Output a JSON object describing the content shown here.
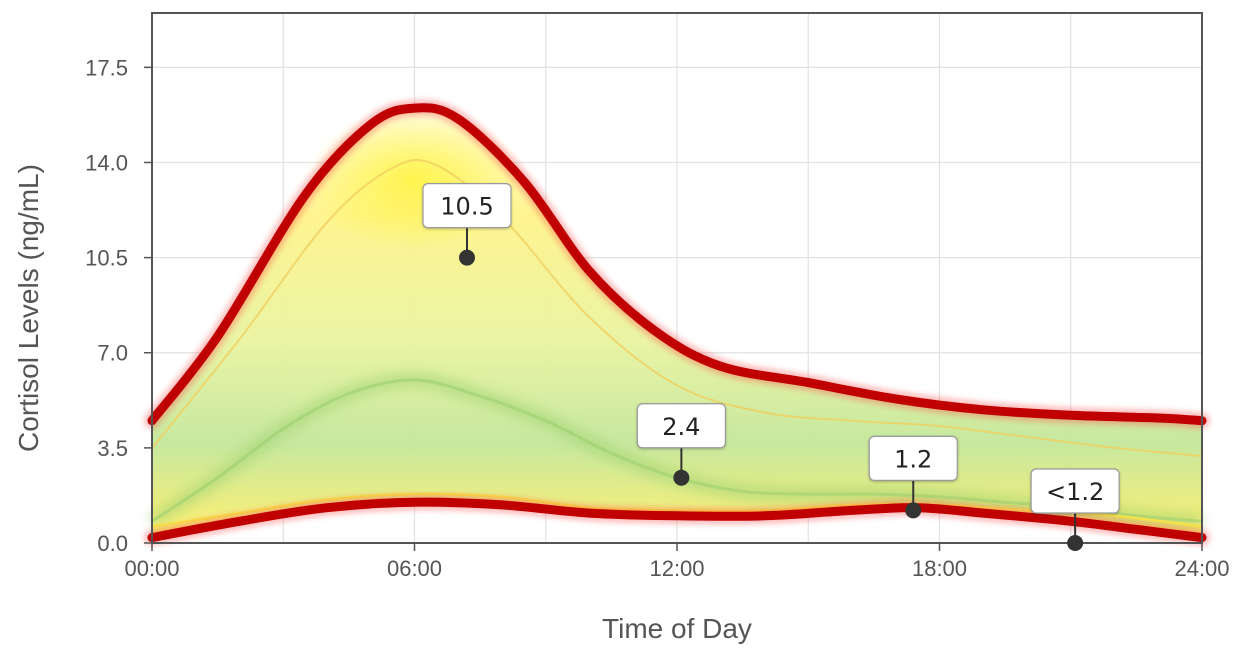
{
  "chart_data": {
    "type": "line",
    "xlabel": "Time of Day",
    "ylabel": "Cortisol Levels (ng/mL)",
    "x_ticks": [
      "00:00",
      "06:00",
      "12:00",
      "18:00",
      "24:00"
    ],
    "y_ticks": [
      "0.0",
      "3.5",
      "7.0",
      "10.5",
      "14.0",
      "17.5"
    ],
    "xlim": [
      0,
      24
    ],
    "ylim": [
      0,
      19.5
    ],
    "grid": true,
    "series": [
      {
        "role": "upper-bound",
        "color": "#c00000",
        "x": [
          0,
          1.5,
          3.5,
          5,
          6,
          7,
          8.5,
          10,
          11.5,
          13,
          15,
          17,
          19,
          21,
          23,
          24
        ],
        "y": [
          4.5,
          7.6,
          12.8,
          15.4,
          16.0,
          15.6,
          13.3,
          10.0,
          7.8,
          6.5,
          5.9,
          5.3,
          4.9,
          4.7,
          4.6,
          4.5
        ]
      },
      {
        "role": "upper-inner",
        "color": "#f0d060",
        "x": [
          0,
          2,
          4,
          5.5,
          6.5,
          8,
          10,
          12,
          14,
          16,
          18,
          20,
          22,
          24
        ],
        "y": [
          3.5,
          7.5,
          11.8,
          13.8,
          13.9,
          12.0,
          8.3,
          5.8,
          4.8,
          4.5,
          4.3,
          3.9,
          3.5,
          3.2
        ]
      },
      {
        "role": "median",
        "color": "#9cd070",
        "x": [
          0,
          1.5,
          3,
          4.5,
          6,
          7.5,
          9,
          10.5,
          12,
          13.5,
          15,
          16.5,
          18,
          19.5,
          21,
          22.5,
          24
        ],
        "y": [
          0.8,
          2.4,
          4.2,
          5.5,
          6.0,
          5.4,
          4.5,
          3.3,
          2.4,
          1.9,
          1.8,
          1.8,
          1.7,
          1.5,
          1.3,
          1.0,
          0.8
        ]
      },
      {
        "role": "lower-inner",
        "color": "#f6e84a",
        "x": [
          0,
          2,
          4,
          6,
          8,
          10,
          12,
          14,
          16,
          18,
          20,
          22,
          24
        ],
        "y": [
          0.6,
          1.1,
          1.6,
          1.8,
          1.7,
          1.3,
          1.2,
          1.2,
          1.4,
          1.4,
          1.2,
          1.0,
          0.6
        ]
      },
      {
        "role": "lower-bound",
        "color": "#c00000",
        "x": [
          0,
          2,
          4,
          6,
          8,
          10,
          12,
          14,
          16,
          17.5,
          19,
          21,
          22.5,
          24
        ],
        "y": [
          0.2,
          0.8,
          1.3,
          1.5,
          1.4,
          1.1,
          1.0,
          1.0,
          1.2,
          1.3,
          1.1,
          0.8,
          0.5,
          0.2
        ]
      }
    ],
    "points": [
      {
        "x": 7.2,
        "y": 10.5,
        "label": "10.5"
      },
      {
        "x": 12.1,
        "y": 2.4,
        "label": "2.4"
      },
      {
        "x": 17.4,
        "y": 1.2,
        "label": "1.2"
      },
      {
        "x": 21.1,
        "y": 0.0,
        "label": "<1.2"
      }
    ],
    "colors": {
      "band_outer": "#c00000",
      "band_fill_yellow": "#fff27a",
      "band_fill_green": "#b6e48a",
      "point": "#333333",
      "grid": "#e2e2e2",
      "frame": "#555555"
    }
  }
}
